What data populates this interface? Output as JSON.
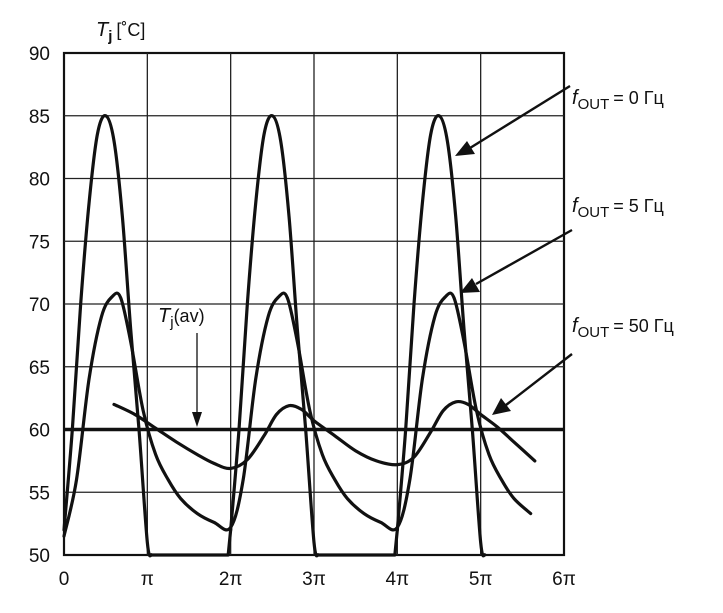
{
  "chart_data": {
    "type": "line",
    "ylabel_symbol": "T",
    "ylabel_sub": "j",
    "ylabel_unit": "[˚C]",
    "ylim": [
      50,
      90
    ],
    "xlim_pi": [
      0,
      6
    ],
    "yticks": [
      "50",
      "55",
      "60",
      "65",
      "70",
      "75",
      "80",
      "85",
      "90"
    ],
    "xticks": [
      "0",
      "π",
      "2π",
      "3π",
      "4π",
      "5π",
      "6π"
    ],
    "grid": true,
    "avg_label_symbol": "T",
    "avg_label_sub": "j",
    "avg_label_suffix": "(av)",
    "avg_value": 60,
    "series": [
      {
        "label_symbol": "f",
        "label_sub": "OUT",
        "label_value": "= 0 Гц",
        "period_pi": 2,
        "points": [
          [
            0,
            52
          ],
          [
            0.1,
            60
          ],
          [
            0.2,
            70
          ],
          [
            0.3,
            78
          ],
          [
            0.4,
            83.5
          ],
          [
            0.5,
            85
          ],
          [
            0.6,
            83
          ],
          [
            0.7,
            77
          ],
          [
            0.8,
            68
          ],
          [
            0.9,
            60
          ],
          [
            1.0,
            51
          ],
          [
            1.05,
            50
          ],
          [
            1.97,
            50
          ],
          [
            2.0,
            52
          ]
        ]
      },
      {
        "label_symbol": "f",
        "label_sub": "OUT",
        "label_value": "= 5 Гц",
        "period_pi": 2,
        "points": [
          [
            0,
            51.5
          ],
          [
            0.15,
            56
          ],
          [
            0.3,
            64
          ],
          [
            0.45,
            69
          ],
          [
            0.58,
            70.6
          ],
          [
            0.68,
            70.5
          ],
          [
            0.8,
            67
          ],
          [
            0.95,
            61.5
          ],
          [
            1.1,
            58
          ],
          [
            1.25,
            56
          ],
          [
            1.4,
            54.5
          ],
          [
            1.6,
            53.3
          ],
          [
            1.8,
            52.6
          ],
          [
            2.0,
            52.2
          ]
        ]
      },
      {
        "label_symbol": "f",
        "label_sub": "OUT",
        "label_value": "= 50 Гц",
        "start_pi": 0.6,
        "end_pi": 5.65,
        "points": [
          [
            0.6,
            62
          ],
          [
            0.85,
            61.2
          ],
          [
            1.1,
            60.1
          ],
          [
            1.35,
            59
          ],
          [
            1.6,
            58
          ],
          [
            1.8,
            57.3
          ],
          [
            2.0,
            56.9
          ],
          [
            2.2,
            57.6
          ],
          [
            2.4,
            59.5
          ],
          [
            2.55,
            61.2
          ],
          [
            2.7,
            61.9
          ],
          [
            2.85,
            61.6
          ],
          [
            3.0,
            60.7
          ],
          [
            3.25,
            59.5
          ],
          [
            3.5,
            58.3
          ],
          [
            3.75,
            57.5
          ],
          [
            4.0,
            57.2
          ],
          [
            4.2,
            57.8
          ],
          [
            4.4,
            59.8
          ],
          [
            4.55,
            61.5
          ],
          [
            4.7,
            62.2
          ],
          [
            4.85,
            62.0
          ],
          [
            5.0,
            61.2
          ],
          [
            5.2,
            60.2
          ],
          [
            5.4,
            59
          ],
          [
            5.65,
            57.5
          ]
        ]
      }
    ]
  }
}
